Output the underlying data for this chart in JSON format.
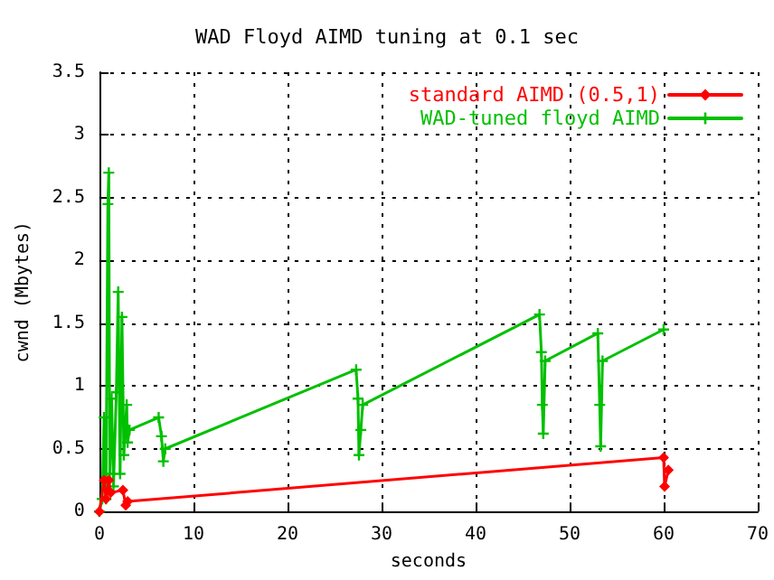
{
  "chart_data": {
    "type": "line",
    "title": "WAD Floyd AIMD tuning at 0.1 sec",
    "xlabel": "seconds",
    "ylabel": "cwnd (Mbytes)",
    "xlim": [
      0,
      70
    ],
    "xticks": [
      0,
      10,
      20,
      30,
      40,
      50,
      60,
      70
    ],
    "ylim": [
      0,
      3.5
    ],
    "yticks": [
      0,
      0.5,
      1,
      1.5,
      2,
      2.5,
      3,
      3.5
    ],
    "grid": true,
    "legend": "top right",
    "line_style": "solid",
    "series": [
      {
        "name": "standard AIMD (0.5,1)",
        "color": "#ff0000",
        "marker": "diamond",
        "x": [
          0,
          0.5,
          0.7,
          1,
          1.2,
          2.5,
          2.8,
          3,
          60,
          60.1,
          60.5
        ],
        "values": [
          0,
          0.25,
          0.1,
          0.25,
          0.15,
          0.17,
          0.05,
          0.08,
          0.43,
          0.2,
          0.33
        ]
      },
      {
        "name": "WAD-tuned floyd AIMD",
        "color": "#00c000",
        "marker": "cross",
        "x": [
          0,
          0.3,
          0.5,
          0.7,
          0.9,
          1,
          1.1,
          1.3,
          1.5,
          1.8,
          2,
          2.2,
          2.4,
          2.6,
          2.9,
          3,
          3.2,
          6.3,
          6.6,
          6.8,
          7,
          27.3,
          27.5,
          27.6,
          27.8,
          28,
          46.8,
          47,
          47.1,
          47.2,
          47.4,
          53,
          53.2,
          53.3,
          53.5,
          60
        ],
        "values": [
          0,
          0.1,
          0.75,
          0.1,
          2.45,
          2.7,
          0.3,
          0.9,
          0.2,
          0.95,
          1.75,
          0.3,
          1.55,
          0.45,
          0.85,
          0.55,
          0.65,
          0.75,
          0.6,
          0.4,
          0.5,
          1.13,
          0.9,
          0.45,
          0.65,
          0.85,
          1.57,
          1.27,
          0.85,
          0.62,
          1.2,
          1.42,
          0.85,
          0.52,
          1.2,
          1.45
        ]
      }
    ]
  }
}
